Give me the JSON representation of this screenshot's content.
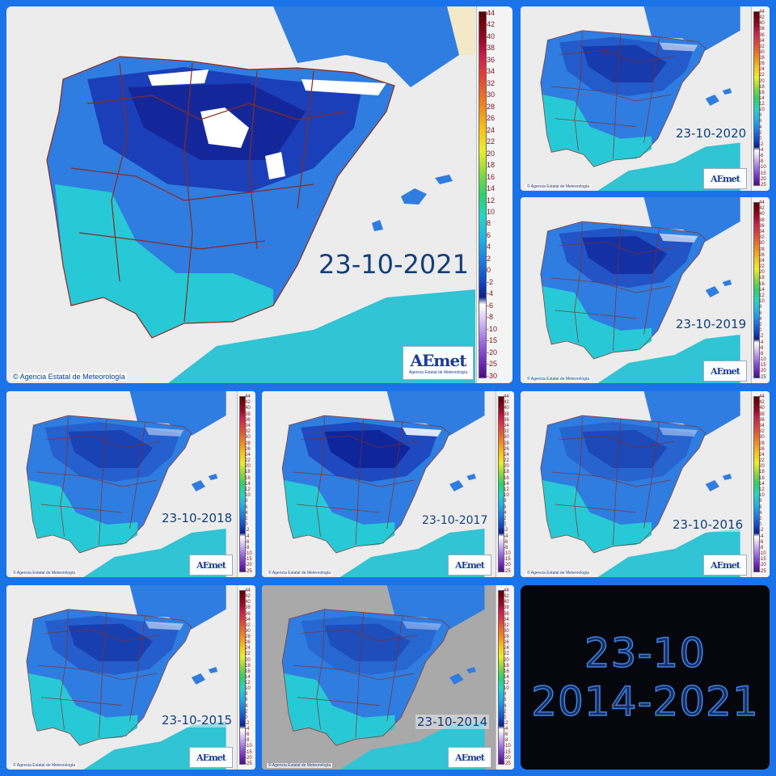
{
  "colors": {
    "background": "#1a73e8",
    "land_cold": "#1b3fb8",
    "land_mid": "#2f7de0",
    "land_warm": "#28c9d6",
    "sea": "#ececec",
    "borders": "#8b2a1e"
  },
  "main": {
    "date": "23-10-2021",
    "credit": "© Agencia Estatal de Meteorología",
    "logo": "AEmet",
    "logo_sub": "Agencia Estatal de Meteorología",
    "scale": [
      "44",
      "42",
      "40",
      "38",
      "36",
      "34",
      "32",
      "30",
      "28",
      "26",
      "24",
      "22",
      "20",
      "18",
      "16",
      "14",
      "12",
      "10",
      "8",
      "6",
      "4",
      "2",
      "0",
      "-2",
      "-4",
      "-6",
      "-8",
      "-10",
      "-15",
      "-20",
      "-25",
      "-30"
    ]
  },
  "small_scale": [
    "44",
    "42",
    "40",
    "38",
    "36",
    "34",
    "32",
    "30",
    "28",
    "26",
    "24",
    "22",
    "20",
    "18",
    "16",
    "14",
    "12",
    "10",
    "8",
    "6",
    "4",
    "2",
    "0",
    "-2",
    "-4",
    "-6",
    "-8",
    "-10",
    "-15",
    "-20",
    "-25"
  ],
  "small_credit": "© Agencia Estatal de Meteorología",
  "small_logo": "AEmet",
  "panels": [
    {
      "date": "23-10-2020"
    },
    {
      "date": "23-10-2019"
    },
    {
      "date": "23-10-2018"
    },
    {
      "date": "23-10-2017"
    },
    {
      "date": "23-10-2016"
    },
    {
      "date": "23-10-2015"
    },
    {
      "date": "23-10-2014"
    }
  ],
  "summary": {
    "line1": "23-10",
    "line2": "2014-2021"
  }
}
